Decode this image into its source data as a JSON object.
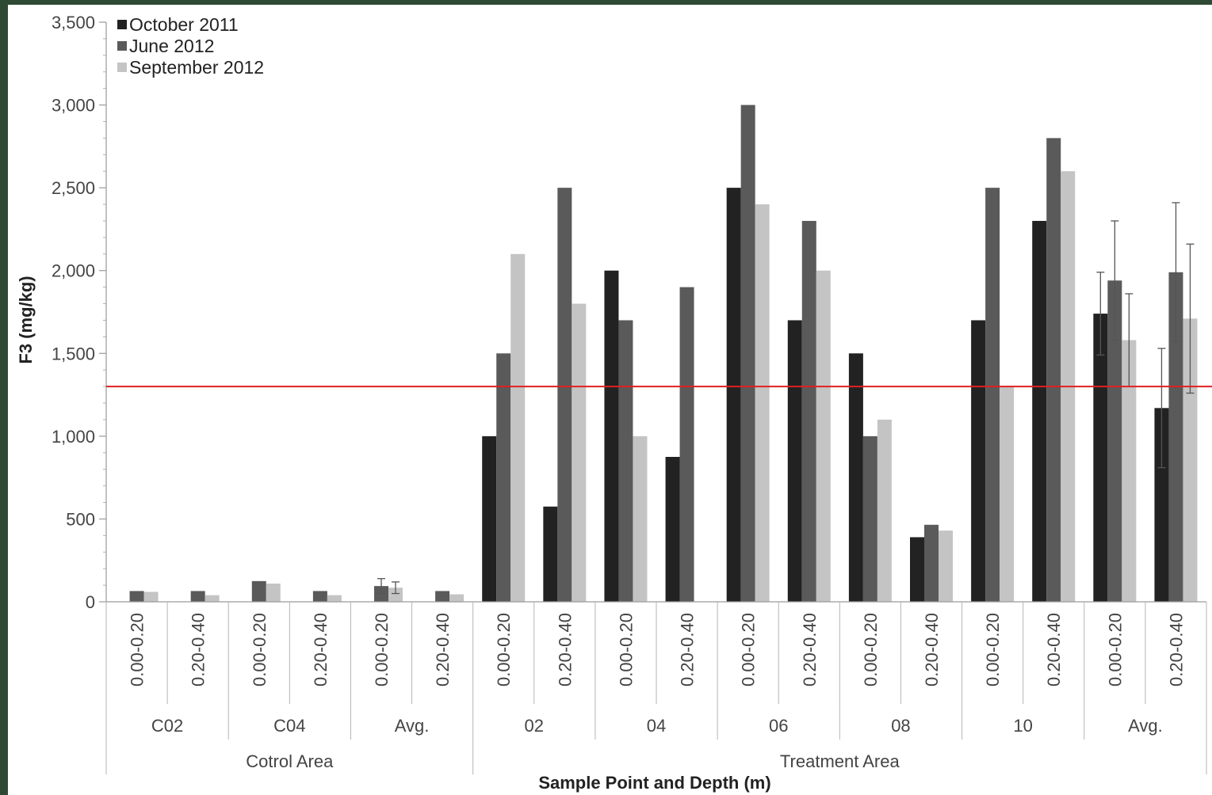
{
  "chart_data": {
    "type": "bar",
    "ylabel": "F3 (mg/kg)",
    "xlabel": "Sample Point and Depth (m)",
    "ylim": [
      0,
      3500
    ],
    "yticks": [
      0,
      500,
      1000,
      1500,
      2000,
      2500,
      3000,
      3500
    ],
    "ytick_labels": [
      "0",
      "500",
      "1,000",
      "1,500",
      "2,000",
      "2,500",
      "3,000",
      "3,500"
    ],
    "reference_line": {
      "value": 1300,
      "color": "#e02020"
    },
    "legend_position": "top-left",
    "grid": false,
    "categories": [
      "0.00-0.20",
      "0.20-0.40",
      "0.00-0.20",
      "0.20-0.40",
      "0.00-0.20",
      "0.20-0.40",
      "0.00-0.20",
      "0.20-0.40",
      "0.00-0.20",
      "0.20-0.40",
      "0.00-0.20",
      "0.20-0.40",
      "0.00-0.20",
      "0.20-0.40",
      "0.00-0.20",
      "0.20-0.40",
      "0.00-0.20",
      "0.20-0.40"
    ],
    "groups": [
      {
        "label": "C02",
        "span": 2
      },
      {
        "label": "C04",
        "span": 2
      },
      {
        "label": "Avg.",
        "span": 2
      },
      {
        "label": "02",
        "span": 2
      },
      {
        "label": "04",
        "span": 2
      },
      {
        "label": "06",
        "span": 2
      },
      {
        "label": "08",
        "span": 2
      },
      {
        "label": "10",
        "span": 2
      },
      {
        "label": "Avg.",
        "span": 2
      }
    ],
    "areas": [
      {
        "label": "Cotrol Area",
        "span": 6
      },
      {
        "label": "Treatment Area",
        "span": 12
      }
    ],
    "series": [
      {
        "name": "October 2011",
        "color": "#222222",
        "values": [
          0,
          0,
          0,
          0,
          0,
          0,
          1000,
          575,
          2000,
          875,
          2500,
          1700,
          1500,
          390,
          1700,
          2300,
          1740,
          1170
        ],
        "errors": [
          null,
          null,
          null,
          null,
          null,
          null,
          null,
          null,
          null,
          null,
          null,
          null,
          null,
          null,
          null,
          null,
          250,
          360
        ]
      },
      {
        "name": "June 2012",
        "color": "#5a5a5a",
        "values": [
          65,
          65,
          125,
          65,
          95,
          65,
          1500,
          2500,
          1700,
          1900,
          3000,
          2300,
          1000,
          465,
          2500,
          2800,
          1940,
          1990
        ],
        "errors": [
          null,
          null,
          null,
          null,
          45,
          null,
          null,
          null,
          null,
          null,
          null,
          null,
          null,
          null,
          null,
          null,
          360,
          420
        ]
      },
      {
        "name": "September 2012",
        "color": "#c4c4c4",
        "values": [
          60,
          40,
          110,
          40,
          85,
          45,
          2100,
          1800,
          1000,
          0,
          2400,
          2000,
          1100,
          430,
          1300,
          2600,
          1580,
          1710
        ],
        "errors": [
          null,
          null,
          null,
          null,
          35,
          null,
          null,
          null,
          null,
          null,
          null,
          null,
          null,
          null,
          null,
          null,
          280,
          450
        ]
      }
    ]
  }
}
